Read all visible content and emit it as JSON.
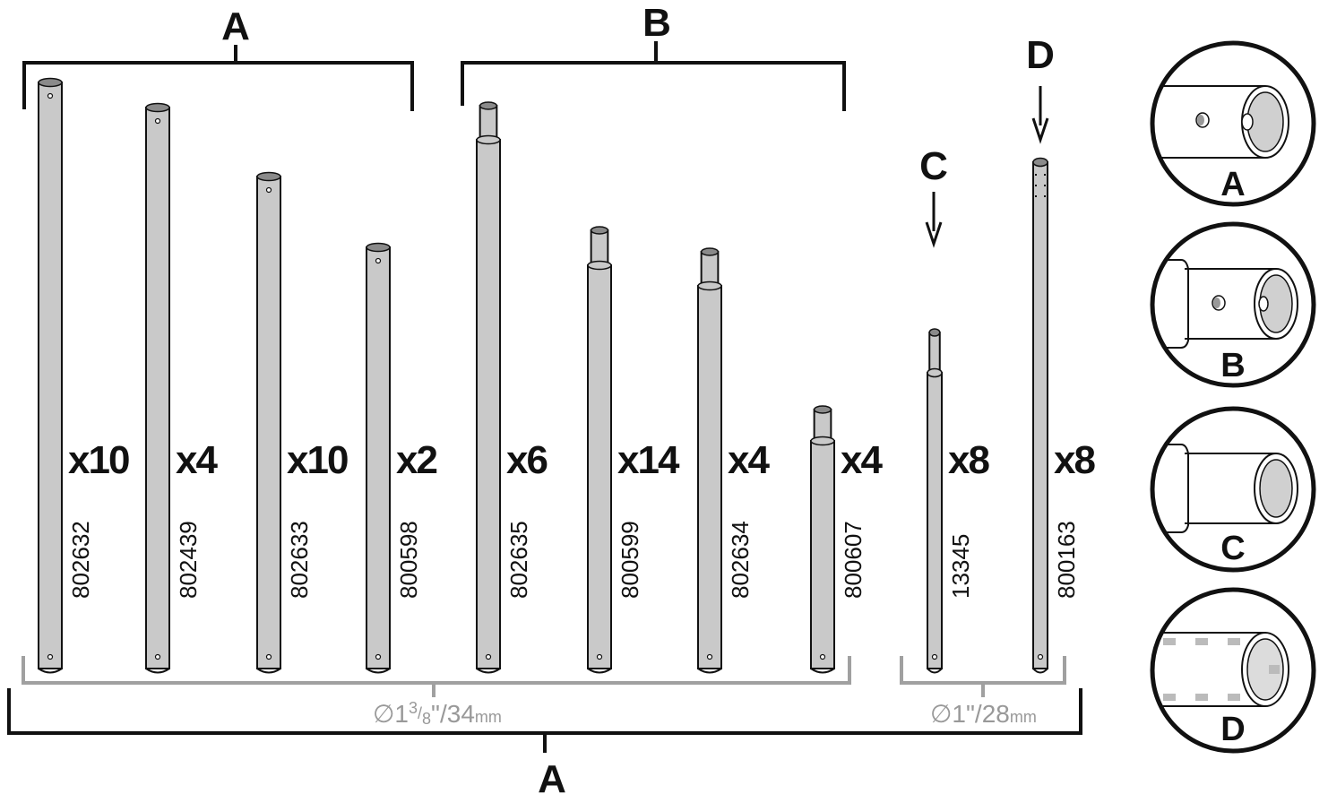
{
  "brackets": {
    "top_a_label": "A",
    "top_b_label": "B",
    "bottom_a_label": "A",
    "arrow_c_label": "C",
    "arrow_d_label": "D"
  },
  "diameters": {
    "large": {
      "symbol": "∅",
      "whole": "1",
      "frac_num": "3",
      "frac_slash": "/",
      "frac_den": "8",
      "inch": "\"",
      "sep": "/",
      "value": "34",
      "unit": "mm"
    },
    "small": {
      "symbol": "∅",
      "whole": "1",
      "inch": "\"",
      "sep": "/",
      "value": "28",
      "unit": "mm"
    }
  },
  "poles": [
    {
      "group": "A",
      "qty": "x10",
      "part": "802632"
    },
    {
      "group": "A",
      "qty": "x4",
      "part": "802439"
    },
    {
      "group": "A",
      "qty": "x10",
      "part": "802633"
    },
    {
      "group": "A",
      "qty": "x2",
      "part": "800598"
    },
    {
      "group": "B",
      "qty": "x6",
      "part": "802635"
    },
    {
      "group": "B",
      "qty": "x14",
      "part": "800599"
    },
    {
      "group": "B",
      "qty": "x4",
      "part": "802634"
    },
    {
      "group": "B",
      "qty": "x4",
      "part": "800607"
    },
    {
      "group": "C",
      "qty": "x8",
      "part": "13345"
    },
    {
      "group": "D",
      "qty": "x8",
      "part": "800163"
    }
  ],
  "details": [
    {
      "label": "A",
      "icon": "tube-end-with-hole-icon"
    },
    {
      "label": "B",
      "icon": "swaged-tube-end-with-hole-icon"
    },
    {
      "label": "C",
      "icon": "swaged-tube-end-icon"
    },
    {
      "label": "D",
      "icon": "tube-end-with-slots-icon"
    }
  ],
  "colors": {
    "pole_fill": "#c9c9c9",
    "pole_end": "#8a8a8a",
    "diameter_bracket": "#a0a0a0",
    "ink": "#111111"
  }
}
